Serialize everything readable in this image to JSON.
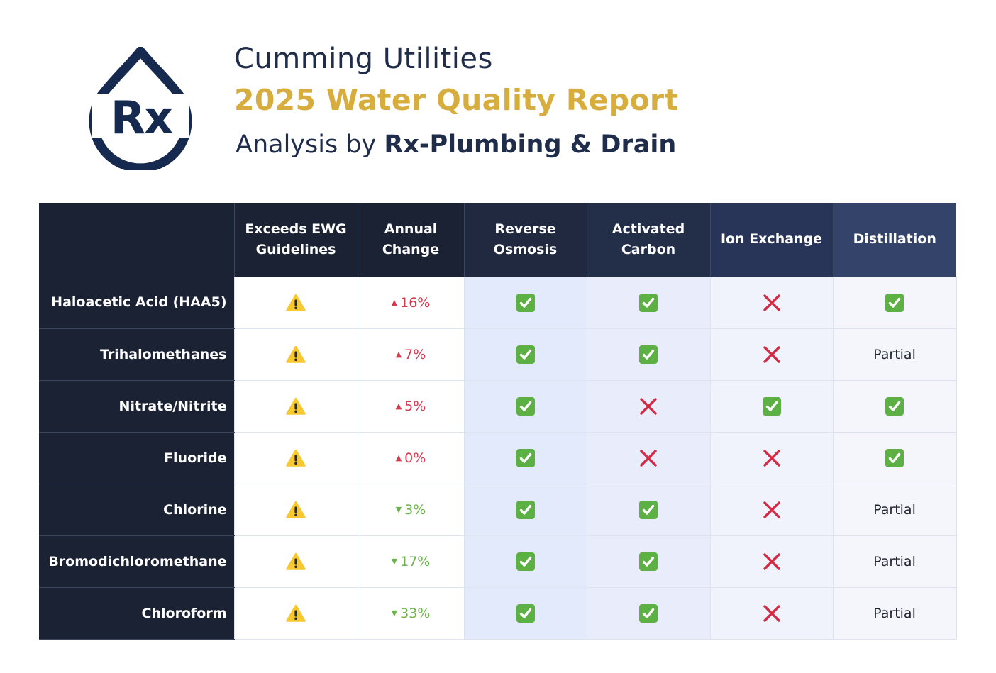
{
  "header": {
    "company": "Cumming Utilities",
    "report_title": "2025 Water Quality Report",
    "analysis_prefix": "Analysis by ",
    "analysis_brand": "Rx-Plumbing & Drain"
  },
  "logo": {
    "text": "Rx",
    "color": "#16294f"
  },
  "colors": {
    "accent": "#d7ae3e",
    "navy": "#1b2234",
    "up": "#d53a4c",
    "down": "#6db34d",
    "check": "#5db044",
    "cross": "#d42a45"
  },
  "table": {
    "columns": [
      "Exceeds EWG Guidelines",
      "Annual Change",
      "Reverse Osmosis",
      "Activated Carbon",
      "Ion Exchange",
      "Distillation"
    ],
    "rows": [
      {
        "name": "Haloacetic Acid (HAA5)",
        "exceeds": "warning-icon",
        "direction": "up",
        "change": "16%",
        "ro": "check",
        "ac": "check",
        "ie": "cross",
        "dist": "check"
      },
      {
        "name": "Trihalomethanes",
        "exceeds": "warning-icon",
        "direction": "up",
        "change": "7%",
        "ro": "check",
        "ac": "check",
        "ie": "cross",
        "dist": "Partial"
      },
      {
        "name": "Nitrate/Nitrite",
        "exceeds": "warning-icon",
        "direction": "up",
        "change": "5%",
        "ro": "check",
        "ac": "cross",
        "ie": "check",
        "dist": "check"
      },
      {
        "name": "Fluoride",
        "exceeds": "warning-icon",
        "direction": "up",
        "change": "0%",
        "ro": "check",
        "ac": "cross",
        "ie": "cross",
        "dist": "check"
      },
      {
        "name": "Chlorine",
        "exceeds": "warning-icon",
        "direction": "down",
        "change": "3%",
        "ro": "check",
        "ac": "check",
        "ie": "cross",
        "dist": "Partial"
      },
      {
        "name": "Bromodichloromethane",
        "exceeds": "warning-icon",
        "direction": "down",
        "change": "17%",
        "ro": "check",
        "ac": "check",
        "ie": "cross",
        "dist": "Partial"
      },
      {
        "name": "Chloroform",
        "exceeds": "warning-icon",
        "direction": "down",
        "change": "33%",
        "ro": "check",
        "ac": "check",
        "ie": "cross",
        "dist": "Partial"
      }
    ]
  }
}
